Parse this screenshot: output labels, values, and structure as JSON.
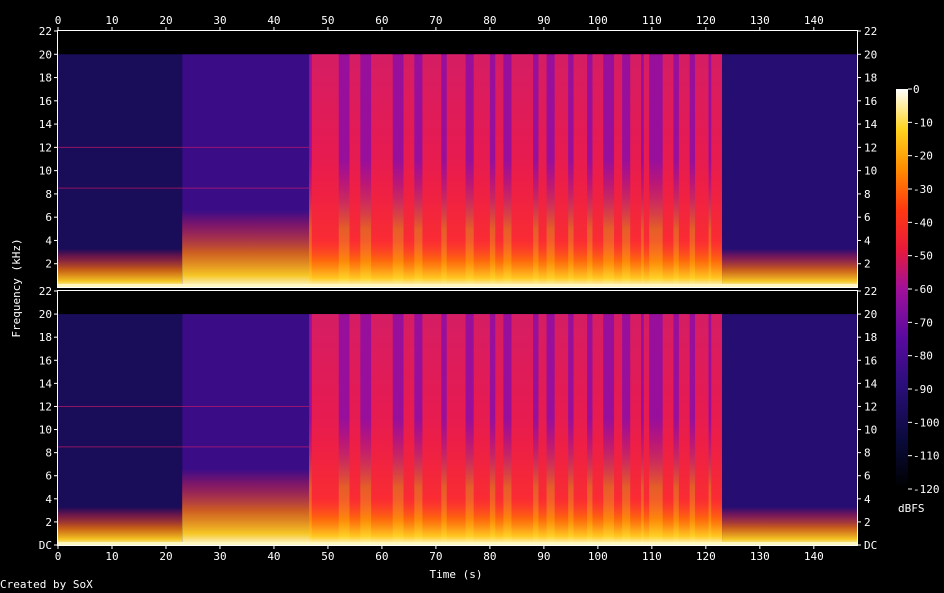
{
  "chart_data": {
    "type": "heatmap",
    "subtype": "spectrogram",
    "xlabel": "Time (s)",
    "ylabel": "Frequency (kHz)",
    "x_range": [
      0,
      148
    ],
    "x_ticks": [
      0,
      10,
      20,
      30,
      40,
      50,
      60,
      70,
      80,
      90,
      100,
      110,
      120,
      130,
      140
    ],
    "y_range_khz": [
      0,
      22
    ],
    "y_tick_labels": [
      "DC",
      "2",
      "4",
      "6",
      "8",
      "10",
      "12",
      "14",
      "16",
      "18",
      "20",
      "22"
    ],
    "y_tick_values": [
      0,
      2,
      4,
      6,
      8,
      10,
      12,
      14,
      16,
      18,
      20,
      22
    ],
    "channels": 2,
    "colorbar": {
      "label": "dBFS",
      "range": [
        -120,
        0
      ],
      "ticks": [
        0,
        -10,
        -20,
        -30,
        -40,
        -50,
        -60,
        -70,
        -80,
        -90,
        -100,
        -110,
        -120
      ],
      "tick_labels": [
        "0",
        "-10",
        "-20",
        "-30",
        "-40",
        "-50",
        "-60",
        "-70",
        "-80",
        "-90",
        "-100",
        "-110",
        "-120"
      ]
    },
    "grid": false,
    "sections": [
      {
        "start": 0,
        "end": 23,
        "level": -98,
        "bandwidth_khz": 20,
        "bright_top_khz": 1.5
      },
      {
        "start": 23,
        "end": 46.5,
        "level": -85,
        "bandwidth_khz": 20,
        "bright_top_khz": 3
      },
      {
        "start": 46.5,
        "end": 123,
        "level": -62,
        "bandwidth_khz": 20,
        "bright_top_khz": 5
      },
      {
        "start": 123,
        "end": 148,
        "level": -92,
        "bandwidth_khz": 20,
        "bright_top_khz": 1.5
      }
    ],
    "loud_bursts": [
      [
        47,
        52
      ],
      [
        54,
        56
      ],
      [
        58,
        62
      ],
      [
        64,
        66
      ],
      [
        67.5,
        71
      ],
      [
        72,
        75.5
      ],
      [
        77,
        80
      ],
      [
        81,
        82.5
      ],
      [
        84,
        88
      ],
      [
        89,
        90.5
      ],
      [
        92,
        94.5
      ],
      [
        95.5,
        98
      ],
      [
        99,
        101
      ],
      [
        103,
        104.5
      ],
      [
        106,
        108
      ],
      [
        108.5,
        109.5
      ],
      [
        112,
        114
      ],
      [
        115,
        117
      ],
      [
        118,
        120.5
      ],
      [
        121,
        123
      ]
    ]
  },
  "footer": {
    "credit": "Created by SoX"
  }
}
